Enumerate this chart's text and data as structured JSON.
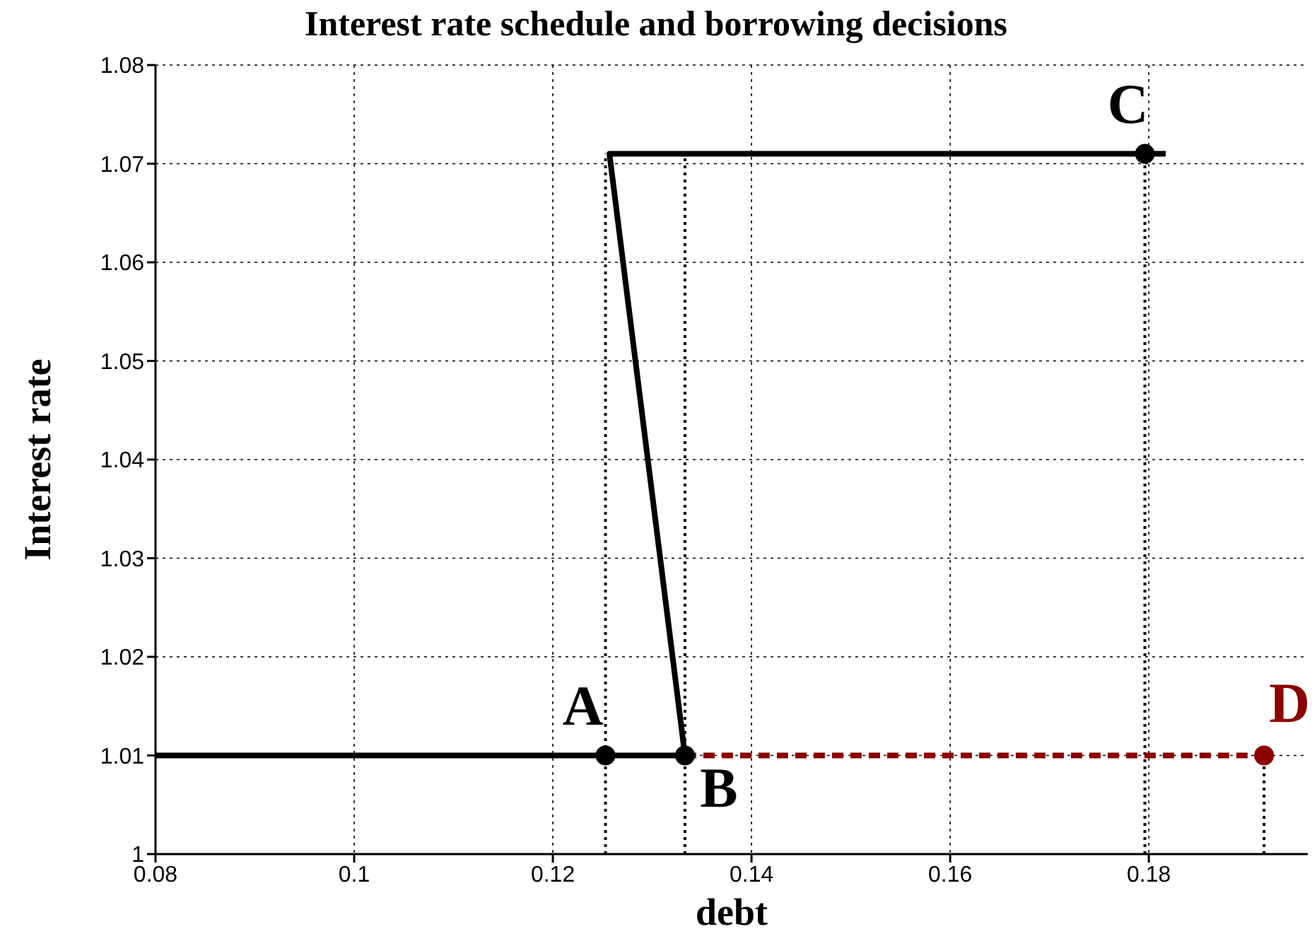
{
  "chart_data": {
    "type": "line",
    "title": "Interest rate schedule and borrowing decisions",
    "xlabel": "debt",
    "ylabel": "Interest rate",
    "xlim": [
      0.08,
      0.196
    ],
    "xticks": [
      0.08,
      0.1,
      0.12,
      0.14,
      0.16,
      0.18
    ],
    "ylim": [
      1,
      1.08
    ],
    "yticks": [
      1,
      1.01,
      1.02,
      1.03,
      1.04,
      1.05,
      1.06,
      1.07,
      1.08
    ],
    "grid": true,
    "marker": "none",
    "series": [
      {
        "type": "line",
        "color": "#000000",
        "line_style": "dotted",
        "x": [
          0.1253,
          0.1253
        ],
        "values": [
          1,
          1.071
        ]
      },
      {
        "type": "line",
        "color": "#000000",
        "line_style": "dotted",
        "x": [
          0.1333,
          0.1333
        ],
        "values": [
          1,
          1.071
        ]
      },
      {
        "type": "line",
        "color": "#000000",
        "line_style": "dotted",
        "x": [
          0.1796,
          0.1796
        ],
        "values": [
          1,
          1.071
        ]
      },
      {
        "type": "line",
        "color": "#000000",
        "line_style": "dotted",
        "x": [
          0.1916,
          0.1916
        ],
        "values": [
          1,
          1.01
        ]
      },
      {
        "type": "line",
        "color": "#8b0000",
        "line_style": "dashed",
        "x": [
          0.1333,
          0.1916
        ],
        "values": [
          1.01,
          1.01
        ]
      },
      {
        "color": "#000000",
        "line_style": "solid",
        "x": [
          0.08,
          0.1333,
          0.1257,
          0.1817
        ],
        "values": [
          1.01,
          1.01,
          1.071,
          1.071
        ]
      },
      {
        "type": "scatter",
        "color": "#000000",
        "marker": "circle",
        "x": [
          0.1253,
          0.1333,
          0.1796
        ],
        "values": [
          1.01,
          1.01,
          1.071
        ]
      },
      {
        "type": "scatter",
        "color": "#8b0000",
        "marker": "circle",
        "x": [
          0.1916
        ],
        "values": [
          1.01
        ]
      }
    ],
    "annotations": [
      {
        "text": "A",
        "x": 0.1253,
        "y": 1.01
      },
      {
        "text": "B",
        "x": 0.1333,
        "y": 1.01
      },
      {
        "text": "C",
        "x": 0.1796,
        "y": 1.071
      },
      {
        "text": "D",
        "x": 0.1916,
        "y": 1.01
      }
    ]
  }
}
